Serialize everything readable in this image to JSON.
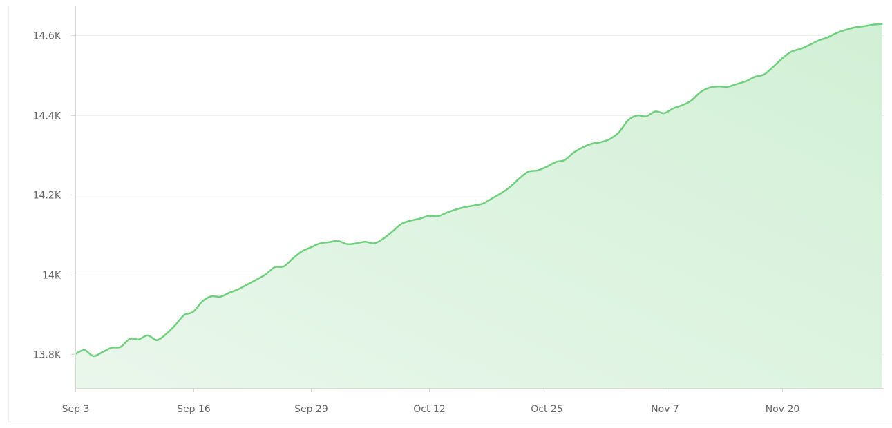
{
  "chart_data": {
    "type": "area",
    "title": "",
    "xlabel": "",
    "ylabel": "",
    "ylim": [
      13715,
      14675
    ],
    "y_ticks": [
      13800,
      14000,
      14200,
      14400,
      14600
    ],
    "y_tick_labels": [
      "13.8K",
      "14K",
      "14.2K",
      "14.4K",
      "14.6K"
    ],
    "x_ticks": [
      "2023-09-03",
      "2023-09-16",
      "2023-09-29",
      "2023-10-12",
      "2023-10-25",
      "2023-11-07",
      "2023-11-20"
    ],
    "x_tick_labels": [
      "Sep 3",
      "Sep 16",
      "Sep 29",
      "Oct 12",
      "Oct 25",
      "Nov 7",
      "Nov 20"
    ],
    "grid": true,
    "legend": "none",
    "colors": {
      "line": "#6fcf7d",
      "fill_top": "#d2f0d6",
      "fill_bottom": "#e9f7eb",
      "grid": "#eeeeee",
      "axis": "#d9d9d9"
    },
    "series": [
      {
        "x": [
          "2023-09-03",
          "2023-09-04",
          "2023-09-05",
          "2023-09-06",
          "2023-09-07",
          "2023-09-08",
          "2023-09-09",
          "2023-09-10",
          "2023-09-11",
          "2023-09-12",
          "2023-09-13",
          "2023-09-14",
          "2023-09-15",
          "2023-09-16",
          "2023-09-17",
          "2023-09-18",
          "2023-09-19",
          "2023-09-20",
          "2023-09-21",
          "2023-09-22",
          "2023-09-23",
          "2023-09-24",
          "2023-09-25",
          "2023-09-26",
          "2023-09-27",
          "2023-09-28",
          "2023-09-29",
          "2023-09-30",
          "2023-10-01",
          "2023-10-02",
          "2023-10-03",
          "2023-10-04",
          "2023-10-05",
          "2023-10-06",
          "2023-10-07",
          "2023-10-08",
          "2023-10-09",
          "2023-10-10",
          "2023-10-11",
          "2023-10-12",
          "2023-10-13",
          "2023-10-14",
          "2023-10-15",
          "2023-10-16",
          "2023-10-17",
          "2023-10-18",
          "2023-10-19",
          "2023-10-20",
          "2023-10-21",
          "2023-10-22",
          "2023-10-23",
          "2023-10-24",
          "2023-10-25",
          "2023-10-26",
          "2023-10-27",
          "2023-10-28",
          "2023-10-29",
          "2023-10-30",
          "2023-10-31",
          "2023-11-01",
          "2023-11-02",
          "2023-11-03",
          "2023-11-04",
          "2023-11-05",
          "2023-11-06",
          "2023-11-07",
          "2023-11-08",
          "2023-11-09",
          "2023-11-10",
          "2023-11-11",
          "2023-11-12",
          "2023-11-13",
          "2023-11-14",
          "2023-11-15",
          "2023-11-16",
          "2023-11-17",
          "2023-11-18",
          "2023-11-19",
          "2023-11-20",
          "2023-11-21",
          "2023-11-22",
          "2023-11-23",
          "2023-11-24",
          "2023-11-25",
          "2023-11-26",
          "2023-11-27",
          "2023-11-28",
          "2023-11-29",
          "2023-11-30",
          "2023-12-01"
        ],
        "values": [
          13800,
          13810,
          13795,
          13805,
          13816,
          13818,
          13838,
          13837,
          13847,
          13835,
          13850,
          13872,
          13898,
          13906,
          13932,
          13945,
          13944,
          13954,
          13963,
          13975,
          13987,
          14000,
          14018,
          14020,
          14040,
          14058,
          14068,
          14078,
          14081,
          14084,
          14076,
          14078,
          14082,
          14078,
          14090,
          14108,
          14127,
          14135,
          14140,
          14147,
          14146,
          14155,
          14163,
          14169,
          14173,
          14178,
          14191,
          14204,
          14220,
          14241,
          14258,
          14261,
          14270,
          14282,
          14287,
          14306,
          14319,
          14328,
          14332,
          14340,
          14357,
          14387,
          14399,
          14397,
          14409,
          14405,
          14417,
          14425,
          14437,
          14458,
          14469,
          14472,
          14471,
          14478,
          14485,
          14496,
          14502,
          14521,
          14542,
          14559,
          14566,
          14576,
          14587,
          14595,
          14606,
          14614,
          14620,
          14623,
          14627,
          14629
        ]
      }
    ]
  }
}
